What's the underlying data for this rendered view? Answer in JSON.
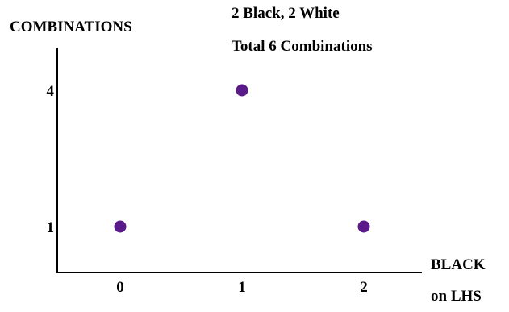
{
  "chart_data": {
    "type": "scatter",
    "title": "2 Black,  2 White",
    "subtitle": "Total 6 Combinations",
    "ylabel": "COMBINATIONS",
    "xlabel": [
      "BLACK",
      "on LHS"
    ],
    "x_ticks": [
      "0",
      "1",
      "2"
    ],
    "y_ticks": [
      "1",
      "4"
    ],
    "xlim": [
      -0.5,
      2.5
    ],
    "ylim": [
      0,
      5
    ],
    "grid": false,
    "points": [
      {
        "x": 0,
        "y": 1
      },
      {
        "x": 1,
        "y": 4
      },
      {
        "x": 2,
        "y": 1
      }
    ],
    "marker_color": "#5b1a8a"
  }
}
